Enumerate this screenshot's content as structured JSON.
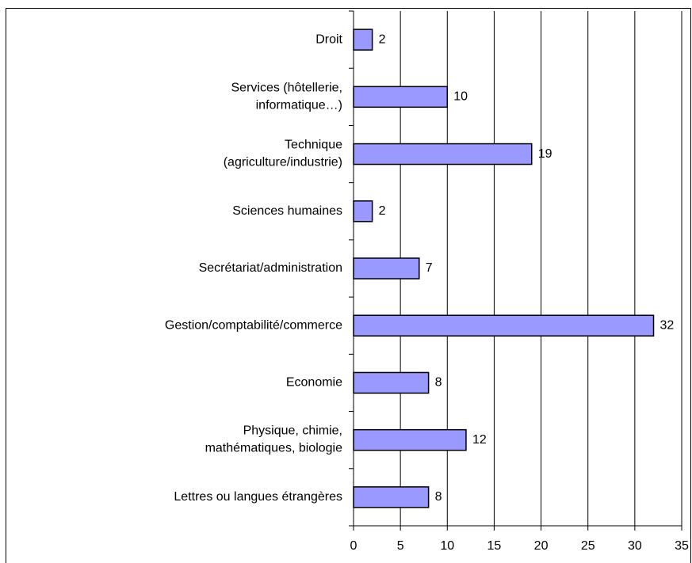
{
  "chart_data": {
    "type": "bar",
    "orientation": "horizontal",
    "categories": [
      "Droit",
      "Services (hôtellerie,\ninformatique…)",
      "Technique\n(agriculture/industrie)",
      "Sciences humaines",
      "Secrétariat/administration",
      "Gestion/comptabilité/commerce",
      "Economie",
      "Physique, chimie,\nmathématiques, biologie",
      "Lettres ou langues étrangères"
    ],
    "values": [
      2,
      10,
      19,
      2,
      7,
      32,
      8,
      12,
      8
    ],
    "color": "#9999ff",
    "xlim": [
      0,
      35
    ],
    "xticks": [
      0,
      5,
      10,
      15,
      20,
      25,
      30,
      35
    ],
    "grid": true
  }
}
